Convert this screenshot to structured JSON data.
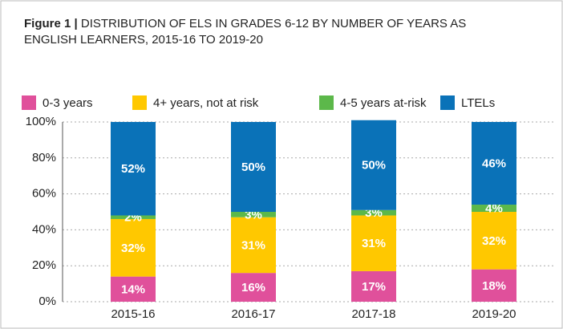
{
  "chart_data": {
    "type": "stacked_bar",
    "figure_label": "Figure 1 |",
    "title": "DISTRIBUTION OF ELS IN GRADES 6-12 BY NUMBER OF YEARS AS ENGLISH LEARNERS, 2015-16 TO 2019-20",
    "categories": [
      "2015-16",
      "2016-17",
      "2017-18",
      "2019-20"
    ],
    "series": [
      {
        "name": "0-3 years",
        "color": "#e0509b",
        "values": [
          14,
          16,
          17,
          18
        ],
        "value_labels": [
          "14%",
          "16%",
          "17%",
          "18%"
        ]
      },
      {
        "name": "4+ years, not at risk",
        "color": "#ffc800",
        "values": [
          32,
          31,
          31,
          32
        ],
        "value_labels": [
          "32%",
          "31%",
          "31%",
          "32%"
        ]
      },
      {
        "name": "4-5 years at-risk",
        "color": "#5cb84a",
        "values": [
          2,
          3,
          3,
          4
        ],
        "value_labels": [
          "2%",
          "3%",
          "3%",
          "4%"
        ]
      },
      {
        "name": "LTELs",
        "color": "#0a72b8",
        "values": [
          52,
          50,
          50,
          46
        ],
        "value_labels": [
          "52%",
          "50%",
          "50%",
          "46%"
        ]
      }
    ],
    "ylim": [
      0,
      100
    ],
    "yticks": [
      {
        "value": 0,
        "label": "0%"
      },
      {
        "value": 20,
        "label": "20%"
      },
      {
        "value": 40,
        "label": "40%"
      },
      {
        "value": 60,
        "label": "60%"
      },
      {
        "value": 80,
        "label": "80%"
      },
      {
        "value": 100,
        "label": "100%"
      }
    ],
    "grid": true
  }
}
